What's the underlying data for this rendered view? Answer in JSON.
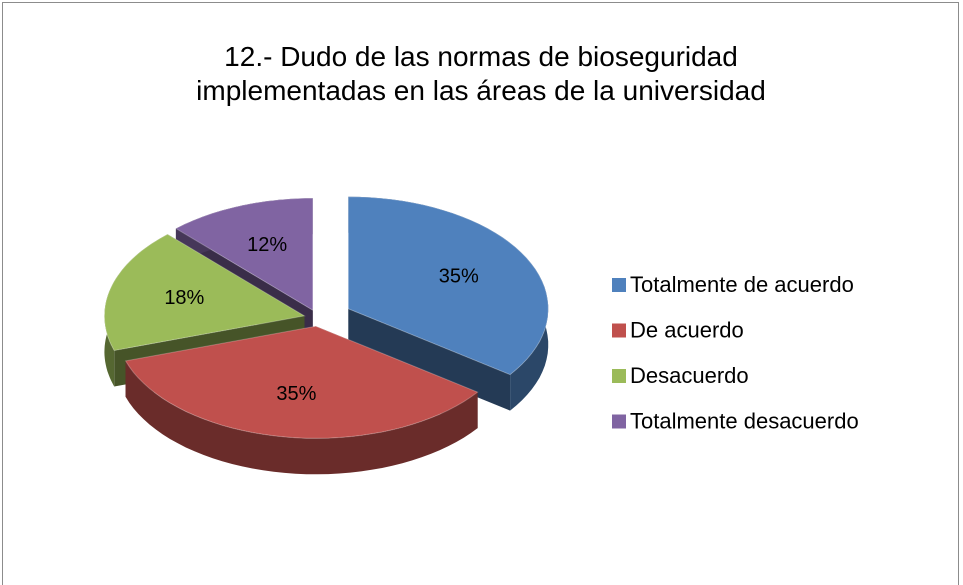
{
  "chart_data": {
    "type": "pie3d",
    "title": "12.- Dudo de las normas de bioseguridad implementadas en las áreas de la universidad",
    "categories": [
      "Totalmente de acuerdo",
      "De acuerdo",
      "Desacuerdo",
      "Totalmente desacuerdo"
    ],
    "values": [
      35,
      35,
      18,
      12
    ],
    "value_labels": [
      "35%",
      "35%",
      "18%",
      "12%"
    ],
    "colors": [
      "#4f81bd",
      "#c0504d",
      "#9bbb59",
      "#8064a2"
    ],
    "legend": "right"
  }
}
